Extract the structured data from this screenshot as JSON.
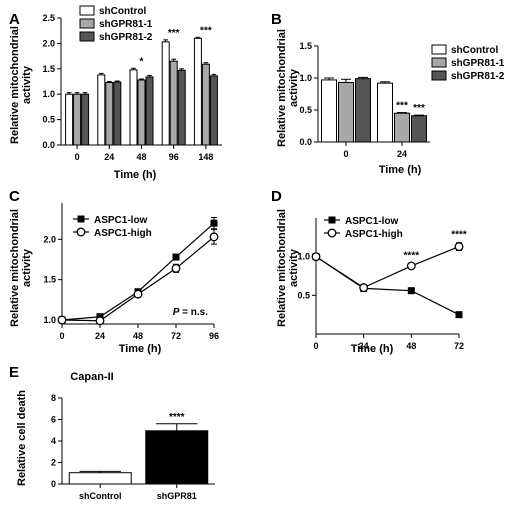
{
  "figure": {
    "panels": [
      {
        "letter": "A"
      },
      {
        "letter": "B"
      },
      {
        "letter": "C",
        "note": "P = n.s."
      },
      {
        "letter": "D"
      },
      {
        "letter": "E"
      }
    ]
  },
  "chart_data": [
    {
      "type": "bar",
      "panel": "A",
      "title": "",
      "xlabel": "Time (h)",
      "ylabel": "Relative mitochondrial activity",
      "categories": [
        "0",
        "24",
        "48",
        "96",
        "148"
      ],
      "ylim": [
        0,
        2.5
      ],
      "yticks": [
        "0.0",
        "0.5",
        "1.0",
        "1.5",
        "2.0",
        "2.5"
      ],
      "series": [
        {
          "name": "shControl",
          "color": "#ffffff",
          "values": [
            1.0,
            1.38,
            1.48,
            2.03,
            2.1
          ],
          "errors": [
            0.03,
            0.03,
            0.03,
            0.04,
            0.02
          ]
        },
        {
          "name": "shGPR81-1",
          "color": "#a8a8a8",
          "values": [
            1.0,
            1.23,
            1.28,
            1.65,
            1.59
          ],
          "errors": [
            0.03,
            0.02,
            0.02,
            0.04,
            0.03
          ]
        },
        {
          "name": "shGPR81-2",
          "color": "#555555",
          "values": [
            1.0,
            1.24,
            1.34,
            1.47,
            1.36
          ],
          "errors": [
            0.03,
            0.02,
            0.03,
            0.03,
            0.03
          ]
        }
      ],
      "annotations": [
        {
          "category": "48",
          "text": "*"
        },
        {
          "category": "96",
          "text": "***"
        },
        {
          "category": "148",
          "text": "***"
        }
      ],
      "legend": "top-left"
    },
    {
      "type": "bar",
      "panel": "B",
      "title": "",
      "xlabel": "Time (h)",
      "ylabel": "Relative mitochondrial activity",
      "categories": [
        "0",
        "24"
      ],
      "ylim": [
        0,
        1.5
      ],
      "yticks": [
        "0.0",
        "0.5",
        "1.0",
        "1.5"
      ],
      "series": [
        {
          "name": "shControl",
          "color": "#ffffff",
          "values": [
            0.97,
            0.92
          ],
          "errors": [
            0.03,
            0.02
          ]
        },
        {
          "name": "shGPR81-1",
          "color": "#a8a8a8",
          "values": [
            0.93,
            0.45
          ],
          "errors": [
            0.05,
            0.01
          ]
        },
        {
          "name": "shGPR81-2",
          "color": "#555555",
          "values": [
            0.99,
            0.41
          ],
          "errors": [
            0.02,
            0.01
          ]
        }
      ],
      "annotations": [
        {
          "category": "24",
          "series": "shGPR81-1",
          "text": "***"
        },
        {
          "category": "24",
          "series": "shGPR81-2",
          "text": "***"
        }
      ],
      "legend": "top-right"
    },
    {
      "type": "line",
      "panel": "C",
      "title": "",
      "xlabel": "Time (h)",
      "ylabel": "Relative mitochondrial activity",
      "x": [
        0,
        24,
        48,
        72,
        96
      ],
      "xticks": [
        "0",
        "24",
        "48",
        "72",
        "96"
      ],
      "ylim": [
        0.95,
        2.45
      ],
      "yticks": [
        "1.0",
        "1.5",
        "2.0"
      ],
      "series": [
        {
          "name": "ASPC1-low",
          "marker": "filled-square",
          "values": [
            1.0,
            1.04,
            1.35,
            1.78,
            2.2
          ],
          "errors": [
            0.01,
            0.02,
            0.03,
            0.03,
            0.07
          ]
        },
        {
          "name": "ASPC1-high",
          "marker": "open-circle",
          "values": [
            1.0,
            0.99,
            1.32,
            1.64,
            2.03
          ],
          "errors": [
            0.01,
            0.02,
            0.03,
            0.05,
            0.09
          ]
        }
      ],
      "legend": "top-left"
    },
    {
      "type": "line",
      "panel": "D",
      "title": "",
      "xlabel": "Time (h)",
      "ylabel": "Relative mitochondrial activity",
      "x": [
        0,
        24,
        48,
        72
      ],
      "xticks": [
        "0",
        "24",
        "48",
        "72"
      ],
      "ylim": [
        0,
        1.5
      ],
      "yticks": [
        "0.5",
        "1.0"
      ],
      "series": [
        {
          "name": "ASPC1-low",
          "marker": "filled-square",
          "values": [
            1.0,
            0.59,
            0.56,
            0.25
          ],
          "errors": [
            0.01,
            0.02,
            0.02,
            0.02
          ]
        },
        {
          "name": "ASPC1-high",
          "marker": "open-circle",
          "values": [
            1.0,
            0.6,
            0.88,
            1.13
          ],
          "errors": [
            0.01,
            0.02,
            0.03,
            0.05
          ]
        }
      ],
      "annotations": [
        {
          "x": 48,
          "text": "****"
        },
        {
          "x": 72,
          "text": "****"
        }
      ],
      "legend": "top-left"
    },
    {
      "type": "bar",
      "panel": "E",
      "title": "Capan-II",
      "xlabel": "",
      "ylabel": "Relative cell death",
      "categories": [
        "shControl",
        "shGPR81"
      ],
      "ylim": [
        0,
        8
      ],
      "yticks": [
        "0",
        "2",
        "4",
        "6",
        "8"
      ],
      "series": [
        {
          "name": "",
          "colors": [
            "#ffffff",
            "#000000"
          ],
          "values": [
            1.05,
            4.95
          ],
          "errors": [
            0.12,
            0.65
          ]
        }
      ],
      "annotations": [
        {
          "category": "shGPR81",
          "text": "****"
        }
      ]
    }
  ]
}
